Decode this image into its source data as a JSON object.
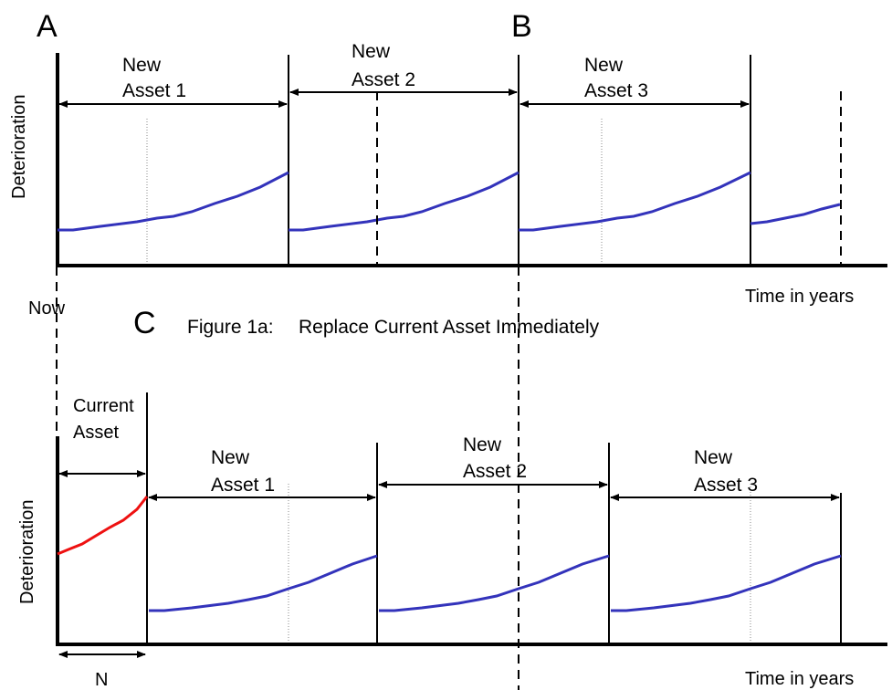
{
  "markers": {
    "a": "A",
    "b": "B",
    "c": "C"
  },
  "top": {
    "y_axis_label": "Deterioration",
    "x_axis_label": "Time in years",
    "now_label": "Now",
    "caption": {
      "prefix": "Figure 1a:",
      "text": "Replace Current Asset Immediately"
    },
    "spans": [
      {
        "line1": "New",
        "line2": "Asset 1"
      },
      {
        "line1": "New",
        "line2": "Asset 2"
      },
      {
        "line1": "New",
        "line2": "Asset 3"
      }
    ]
  },
  "bottom": {
    "y_axis_label": "Deterioration",
    "x_axis_label": "Time in years",
    "current_span": {
      "line1": "Current",
      "line2": "Asset"
    },
    "n_label": "N",
    "spans": [
      {
        "line1": "New",
        "line2": "Asset 1"
      },
      {
        "line1": "New",
        "line2": "Asset 2"
      },
      {
        "line1": "New",
        "line2": "Asset 3"
      }
    ]
  },
  "colors": {
    "new_asset_curve": "#3333bb",
    "current_asset_curve": "#ee1111",
    "lines": "#000000"
  }
}
